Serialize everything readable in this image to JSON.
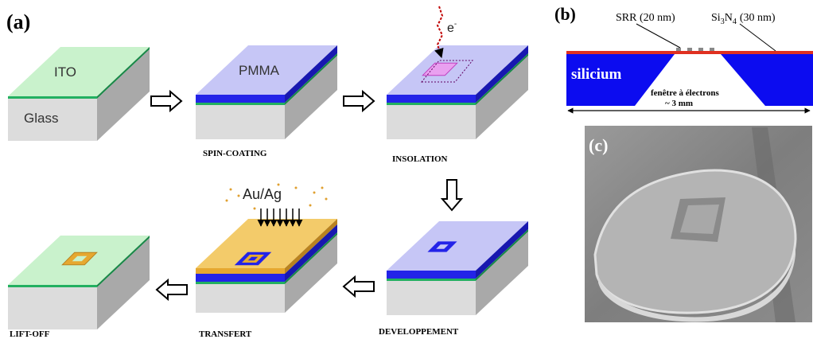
{
  "panel_a": {
    "label": "(a)",
    "ito": "ITO",
    "glass": "Glass",
    "pmma": "PMMA",
    "electron": [
      "e",
      "-"
    ],
    "metal": "Au/Ag",
    "steps": [
      "SPIN-COATING",
      "INSOLATION",
      "DEVELOPPEMENT",
      "TRANSFERT",
      "LIFT-OFF"
    ]
  },
  "panel_b": {
    "label": "(b)",
    "srr": "SRR (20 nm)",
    "si3n4": [
      "Si",
      "3",
      "N",
      "4",
      "(30 nm)"
    ],
    "substrate": "silicium",
    "window": "fenêtre à électrons",
    "width": "~ 3 mm"
  },
  "panel_c": {
    "label": "(c)"
  }
}
